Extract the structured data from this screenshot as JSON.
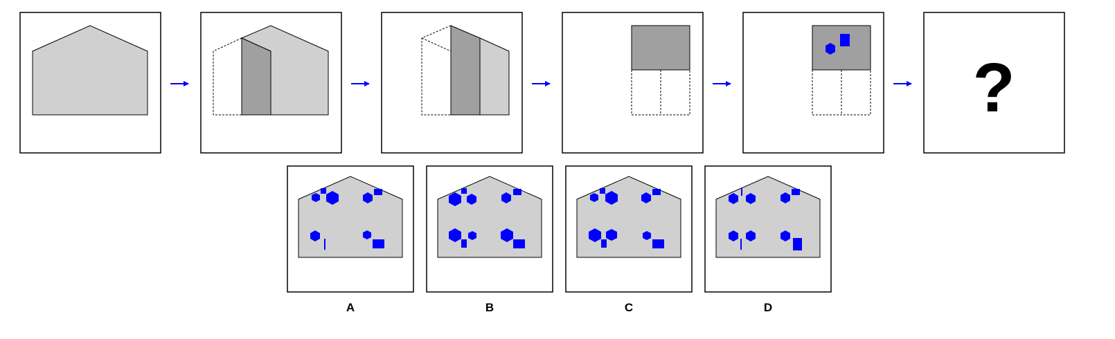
{
  "question_mark": "?",
  "options": [
    {
      "label": "A"
    },
    {
      "label": "B"
    },
    {
      "label": "C"
    },
    {
      "label": "D"
    }
  ],
  "colors": {
    "light_gray": "#d0d0d0",
    "dark_gray": "#a0a0a0",
    "blue": "#0000ff",
    "arrow": "#0000ff",
    "border": "#000000"
  }
}
